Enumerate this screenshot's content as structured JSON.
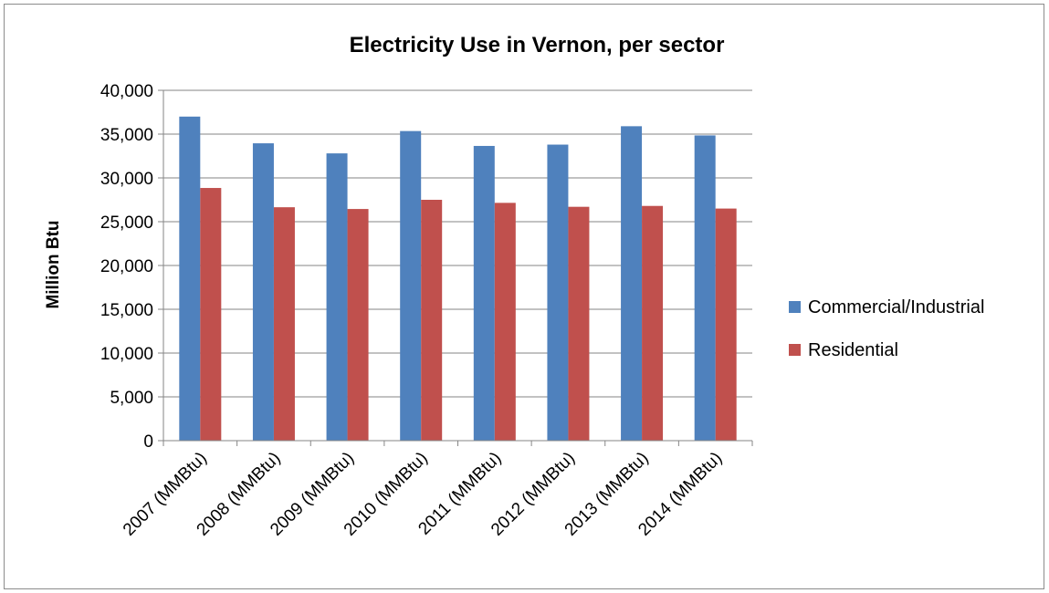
{
  "chart_data": {
    "type": "bar",
    "title": "Electricity Use in Vernon, per sector",
    "xlabel": "",
    "ylabel": "Million Btu",
    "categories": [
      "2007 (MMBtu)",
      "2008 (MMBtu)",
      "2009 (MMBtu)",
      "2010 (MMBtu)",
      "2011 (MMBtu)",
      "2012 (MMBtu)",
      "2013 (MMBtu)",
      "2014 (MMBtu)"
    ],
    "series": [
      {
        "name": "Commercial/Industrial",
        "color": "#4f81bd",
        "values": [
          37000,
          33950,
          32800,
          35350,
          33650,
          33800,
          35900,
          34850
        ]
      },
      {
        "name": "Residential",
        "color": "#c0504d",
        "values": [
          28850,
          26650,
          26450,
          27500,
          27150,
          26700,
          26800,
          26500
        ]
      }
    ],
    "ylim": [
      0,
      40000
    ],
    "yticks": [
      "0",
      "5,000",
      "10,000",
      "15,000",
      "20,000",
      "25,000",
      "30,000",
      "35,000",
      "40,000"
    ],
    "ytick_values": [
      0,
      5000,
      10000,
      15000,
      20000,
      25000,
      30000,
      35000,
      40000
    ],
    "grid": true,
    "legend_position": "right"
  }
}
